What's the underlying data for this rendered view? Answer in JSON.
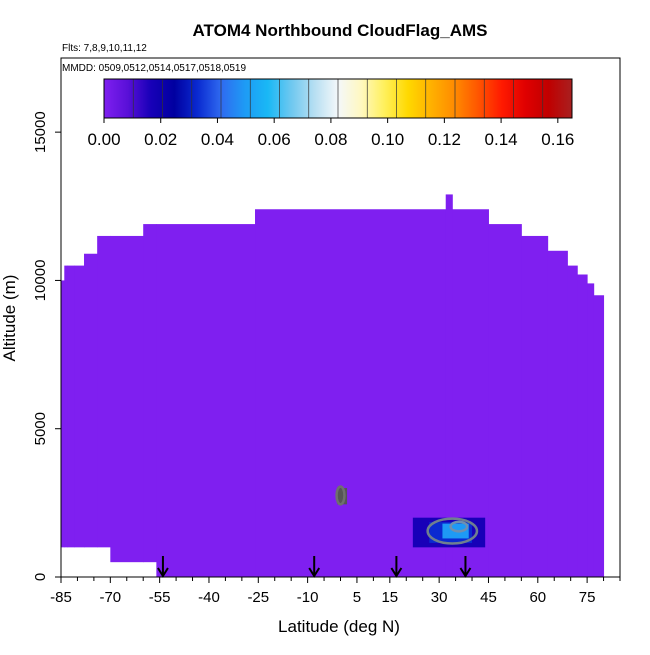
{
  "chart_data": {
    "type": "heatmap",
    "title": "ATOM4 Northbound CloudFlag_AMS",
    "subtitle_flights": "Flts: 7,8,9,10,11,12",
    "subtitle_dates": "MMDD: 0509,0512,0514,0517,0518,0519",
    "xlabel": "Latitude (deg N)",
    "ylabel": "Altitude (m)",
    "xlim": [
      -85,
      85
    ],
    "ylim": [
      0,
      17500
    ],
    "x_ticks": [
      -85,
      -70,
      -55,
      -40,
      -25,
      -10,
      5,
      15,
      30,
      45,
      60,
      75
    ],
    "y_ticks": [
      0,
      5000,
      10000,
      15000
    ],
    "colorbar": {
      "min": 0.0,
      "max": 0.165,
      "ticks": [
        "0.00",
        "0.02",
        "0.04",
        "0.06",
        "0.08",
        "0.10",
        "0.12",
        "0.14",
        "0.16"
      ],
      "colors": [
        "#7f1ff0",
        "#5a10d8",
        "#1800b8",
        "#0000a0",
        "#0a2ad0",
        "#2f6af0",
        "#1e9af5",
        "#19b8f5",
        "#6ec8f0",
        "#b7dff2",
        "#f4f8fa",
        "#fff8c0",
        "#fff05a",
        "#ffd800",
        "#ffb000",
        "#ff8a00",
        "#ff5500",
        "#ff1a00",
        "#e00000",
        "#c00000",
        "#a82020"
      ]
    },
    "background_value_color": "#7f1ff0",
    "coverage_profile": [
      {
        "lat_start": -85,
        "lat_end": -84,
        "alt_bottom": 1000,
        "alt_top": 10000
      },
      {
        "lat_start": -84,
        "lat_end": -83,
        "alt_bottom": 1000,
        "alt_top": 10500
      },
      {
        "lat_start": -83,
        "lat_end": -81,
        "alt_bottom": 1000,
        "alt_top": 10500
      },
      {
        "lat_start": -81,
        "lat_end": -78,
        "alt_bottom": 1000,
        "alt_top": 10500
      },
      {
        "lat_start": -78,
        "lat_end": -74,
        "alt_bottom": 1000,
        "alt_top": 10900
      },
      {
        "lat_start": -74,
        "lat_end": -70,
        "alt_bottom": 1000,
        "alt_top": 11500
      },
      {
        "lat_start": -70,
        "lat_end": -60,
        "alt_bottom": 500,
        "alt_top": 11500
      },
      {
        "lat_start": -60,
        "lat_end": -56,
        "alt_bottom": 500,
        "alt_top": 11900
      },
      {
        "lat_start": -56,
        "lat_end": -26,
        "alt_bottom": 0,
        "alt_top": 11900
      },
      {
        "lat_start": -26,
        "lat_end": 32,
        "alt_bottom": 0,
        "alt_top": 12400
      },
      {
        "lat_start": 32,
        "lat_end": 34,
        "alt_bottom": 0,
        "alt_top": 12900
      },
      {
        "lat_start": 34,
        "lat_end": 45,
        "alt_bottom": 0,
        "alt_top": 12400
      },
      {
        "lat_start": 45,
        "lat_end": 55,
        "alt_bottom": 0,
        "alt_top": 11900
      },
      {
        "lat_start": 55,
        "lat_end": 63,
        "alt_bottom": 0,
        "alt_top": 11500
      },
      {
        "lat_start": 63,
        "lat_end": 69,
        "alt_bottom": 0,
        "alt_top": 11000
      },
      {
        "lat_start": 69,
        "lat_end": 72,
        "alt_bottom": 0,
        "alt_top": 10500
      },
      {
        "lat_start": 72,
        "lat_end": 75,
        "alt_bottom": 0,
        "alt_top": 10200
      },
      {
        "lat_start": 75,
        "lat_end": 77,
        "alt_bottom": 0,
        "alt_top": 9900
      },
      {
        "lat_start": 77,
        "lat_end": 80,
        "alt_bottom": 0,
        "alt_top": 9500
      }
    ],
    "hotspots": [
      {
        "lat_start": 22,
        "lat_end": 44,
        "alt_bottom": 1000,
        "alt_top": 2000,
        "value": 0.02
      },
      {
        "lat_start": 27,
        "lat_end": 40,
        "alt_bottom": 1150,
        "alt_top": 1850,
        "value": 0.035
      },
      {
        "lat_start": 31,
        "lat_end": 39,
        "alt_bottom": 1300,
        "alt_top": 1800,
        "value": 0.05
      },
      {
        "lat_start": -1,
        "lat_end": 2,
        "alt_bottom": 2450,
        "alt_top": 3000,
        "value": 0.0
      }
    ],
    "contours": [
      {
        "lat_center": 34,
        "alt_center": 1550,
        "lat_radius": 7.5,
        "alt_radius": 420,
        "color": "#6f7f8f"
      },
      {
        "lat_center": 36,
        "alt_center": 1700,
        "lat_radius": 2.5,
        "alt_radius": 160,
        "color": "#6f8fb0"
      },
      {
        "lat_center": 0,
        "alt_center": 2750,
        "lat_radius": 1.2,
        "alt_radius": 300,
        "color": "#6f6f6f"
      }
    ],
    "flight_markers_lat": [
      -54,
      -8,
      17,
      38
    ]
  }
}
